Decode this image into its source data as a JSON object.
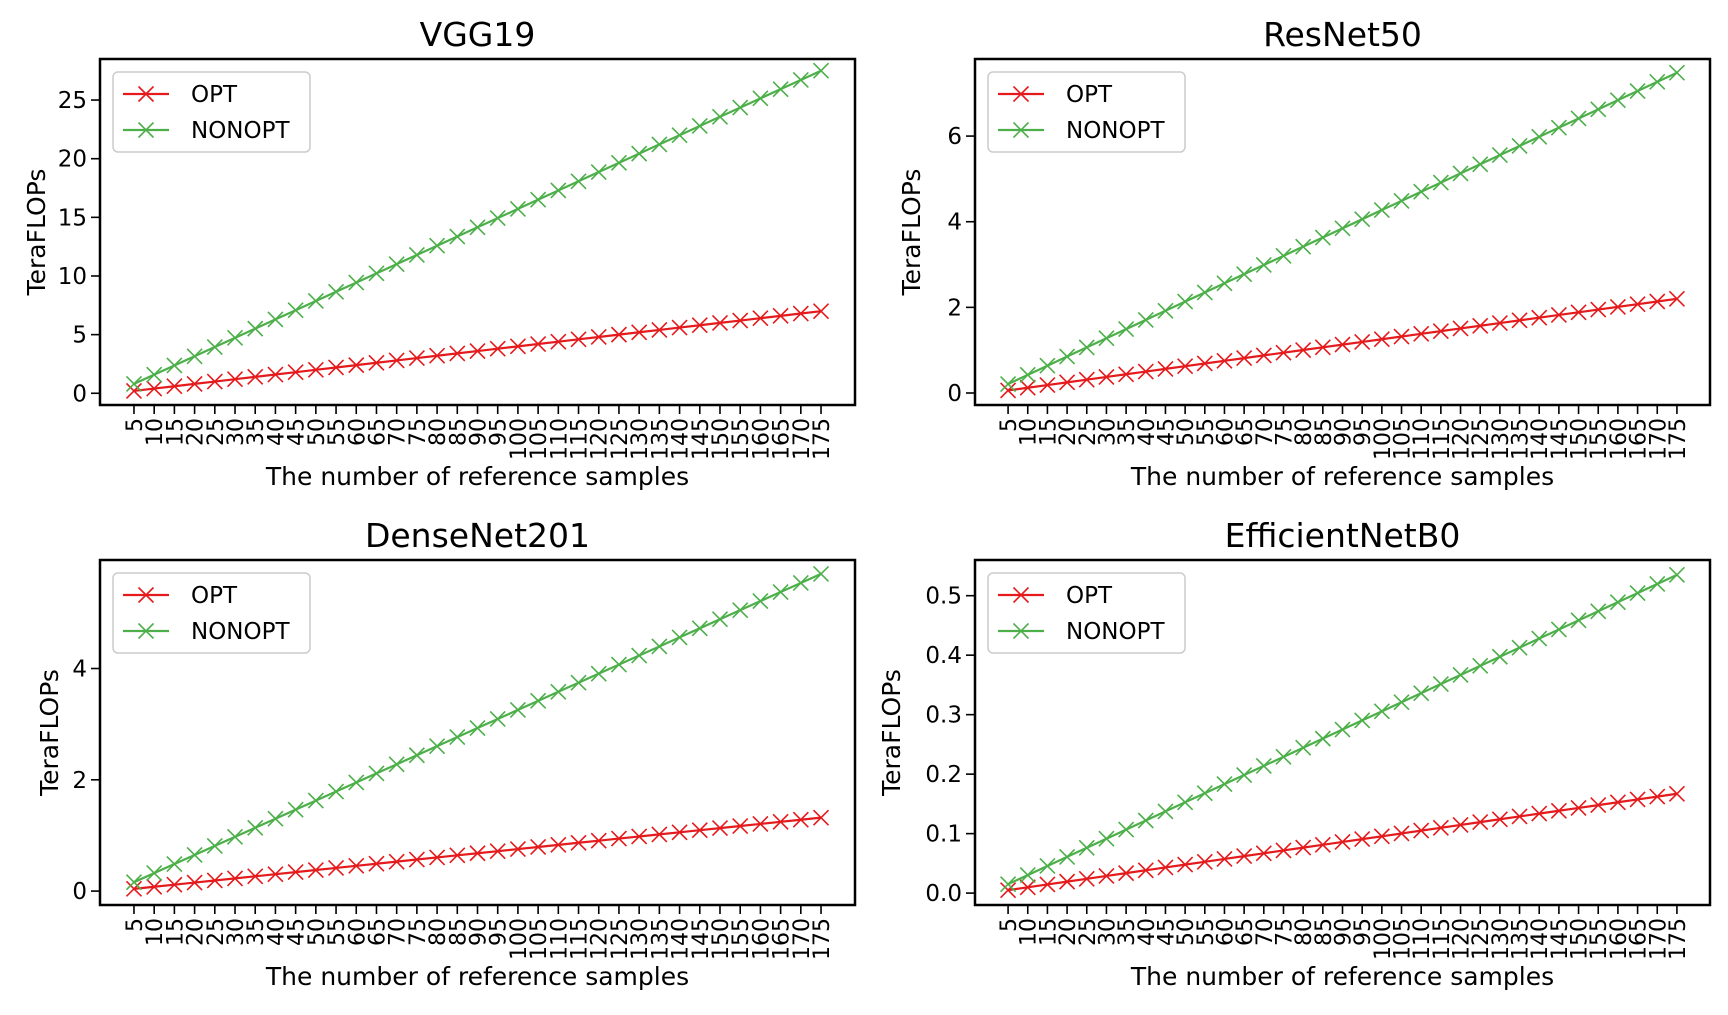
{
  "colors": {
    "opt": "#e41a1c",
    "nonopt": "#4daf4a"
  },
  "chart_data": [
    {
      "type": "line",
      "title": "VGG19",
      "xlabel": "The number of reference samples",
      "ylabel": "TeraFLOPs",
      "legend": "top-left",
      "grid": false,
      "marker": "x",
      "x": [
        5,
        10,
        15,
        20,
        25,
        30,
        35,
        40,
        45,
        50,
        55,
        60,
        65,
        70,
        75,
        80,
        85,
        90,
        95,
        100,
        105,
        110,
        115,
        120,
        125,
        130,
        135,
        140,
        145,
        150,
        155,
        160,
        165,
        170,
        175
      ],
      "ylim": [
        -1.0,
        28.5
      ],
      "yticks": [
        0,
        5,
        10,
        15,
        20,
        25
      ],
      "ytick_labels": [
        "0",
        "5",
        "10",
        "15",
        "20",
        "25"
      ],
      "series": [
        {
          "name": "OPT",
          "color": "#e41a1c",
          "start": 0.2,
          "end": 7.0
        },
        {
          "name": "NONOPT",
          "color": "#4daf4a",
          "start": 0.8,
          "end": 27.5
        }
      ]
    },
    {
      "type": "line",
      "title": "ResNet50",
      "xlabel": "The number of reference samples",
      "ylabel": "TeraFLOPs",
      "legend": "top-left",
      "grid": false,
      "marker": "x",
      "x": [
        5,
        10,
        15,
        20,
        25,
        30,
        35,
        40,
        45,
        50,
        55,
        60,
        65,
        70,
        75,
        80,
        85,
        90,
        95,
        100,
        105,
        110,
        115,
        120,
        125,
        130,
        135,
        140,
        145,
        150,
        155,
        160,
        165,
        170,
        175
      ],
      "ylim": [
        -0.28,
        7.8
      ],
      "yticks": [
        0,
        2,
        4,
        6
      ],
      "ytick_labels": [
        "0",
        "2",
        "4",
        "6"
      ],
      "series": [
        {
          "name": "OPT",
          "color": "#e41a1c",
          "start": 0.06,
          "end": 2.2
        },
        {
          "name": "NONOPT",
          "color": "#4daf4a",
          "start": 0.21,
          "end": 7.48
        }
      ]
    },
    {
      "type": "line",
      "title": "DenseNet201",
      "xlabel": "The number of reference samples",
      "ylabel": "TeraFLOPs",
      "legend": "top-left",
      "grid": false,
      "marker": "x",
      "x": [
        5,
        10,
        15,
        20,
        25,
        30,
        35,
        40,
        45,
        50,
        55,
        60,
        65,
        70,
        75,
        80,
        85,
        90,
        95,
        100,
        105,
        110,
        115,
        120,
        125,
        130,
        135,
        140,
        145,
        150,
        155,
        160,
        165,
        170,
        175
      ],
      "ylim": [
        -0.25,
        5.95
      ],
      "yticks": [
        0,
        2,
        4
      ],
      "ytick_labels": [
        "0",
        "2",
        "4"
      ],
      "series": [
        {
          "name": "OPT",
          "color": "#e41a1c",
          "start": 0.04,
          "end": 1.32
        },
        {
          "name": "NONOPT",
          "color": "#4daf4a",
          "start": 0.16,
          "end": 5.7
        }
      ]
    },
    {
      "type": "line",
      "title": "EfficientNetB0",
      "xlabel": "The number of reference samples",
      "ylabel": "TeraFLOPs",
      "legend": "top-left",
      "grid": false,
      "marker": "x",
      "x": [
        5,
        10,
        15,
        20,
        25,
        30,
        35,
        40,
        45,
        50,
        55,
        60,
        65,
        70,
        75,
        80,
        85,
        90,
        95,
        100,
        105,
        110,
        115,
        120,
        125,
        130,
        135,
        140,
        145,
        150,
        155,
        160,
        165,
        170,
        175
      ],
      "ylim": [
        -0.02,
        0.56
      ],
      "yticks": [
        0.0,
        0.1,
        0.2,
        0.3,
        0.4,
        0.5
      ],
      "ytick_labels": [
        "0.0",
        "0.1",
        "0.2",
        "0.3",
        "0.4",
        "0.5"
      ],
      "series": [
        {
          "name": "OPT",
          "color": "#e41a1c",
          "start": 0.005,
          "end": 0.167
        },
        {
          "name": "NONOPT",
          "color": "#4daf4a",
          "start": 0.015,
          "end": 0.535
        }
      ]
    }
  ]
}
